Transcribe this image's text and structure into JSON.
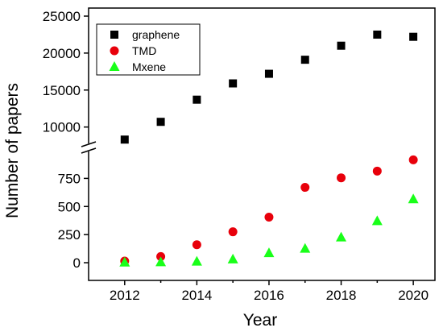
{
  "chart_data": {
    "type": "scatter",
    "xlabel": "Year",
    "ylabel": "Number of papers",
    "x": [
      2012,
      2013,
      2014,
      2015,
      2016,
      2017,
      2018,
      2019,
      2020
    ],
    "xlim": [
      2011,
      2020.6
    ],
    "x_ticks": [
      "2012",
      "2014",
      "2016",
      "2018",
      "2020"
    ],
    "y_axis_broken": true,
    "upper_segment": {
      "ylim": [
        8000,
        25000
      ],
      "ticks": [
        "10000",
        "15000",
        "20000",
        "25000"
      ]
    },
    "lower_segment": {
      "ylim": [
        -100,
        975
      ],
      "ticks": [
        "0",
        "250",
        "500",
        "750"
      ]
    },
    "legend_position": "top-left",
    "series": [
      {
        "name": "graphene",
        "marker": "square",
        "color": "#000000",
        "values": [
          8300,
          10700,
          13700,
          15900,
          17200,
          19100,
          21000,
          22500,
          22200
        ]
      },
      {
        "name": "TMD",
        "marker": "circle",
        "color": "#e8000b",
        "values": [
          15,
          55,
          160,
          275,
          405,
          670,
          755,
          815,
          915
        ]
      },
      {
        "name": "Mxene",
        "marker": "triangle",
        "color": "#19ff19",
        "values": [
          2,
          5,
          10,
          30,
          85,
          125,
          225,
          370,
          565
        ]
      }
    ]
  }
}
